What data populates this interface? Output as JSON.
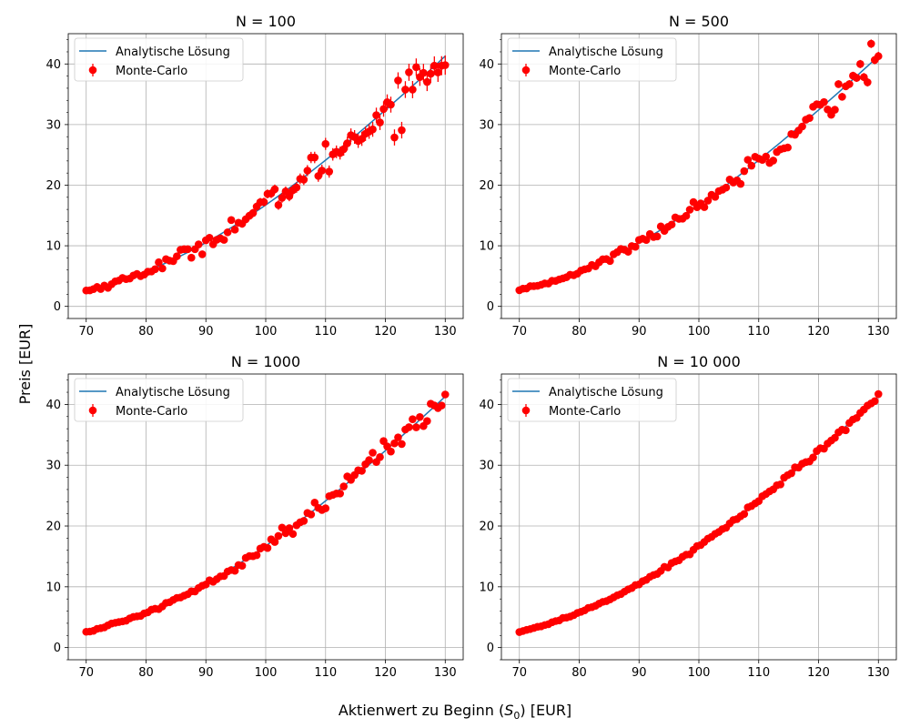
{
  "figure": {
    "xlabel_text": "Aktienwert zu Beginn (",
    "xlabel_sym": "S",
    "xlabel_sub": "0",
    "xlabel_end": ") [EUR]",
    "ylabel": "Preis [EUR]"
  },
  "colors": {
    "analytic_line": "#1f77b4",
    "monte_carlo": "#ff0000",
    "grid": "#b0b0b0"
  },
  "legend": {
    "analytic": "Analytische Lösung",
    "monte_carlo": "Monte-Carlo",
    "position": "top-left"
  },
  "chart_data": [
    {
      "type": "scatter",
      "title": "N = 100",
      "xlim": [
        67,
        133
      ],
      "ylim": [
        -2,
        45
      ],
      "xticks": [
        70,
        80,
        90,
        100,
        110,
        120,
        130
      ],
      "yticks": [
        0,
        10,
        20,
        30,
        40
      ],
      "x_range": [
        70,
        130
      ],
      "n_points": 100,
      "strike": 100,
      "t_rate": 0.1,
      "sigma_t": 0.3,
      "noise_amp": 0.06,
      "err_scale": 1.0,
      "grid": true,
      "series": [
        {
          "name": "Analytische Lösung",
          "kind": "line"
        },
        {
          "name": "Monte-Carlo",
          "kind": "errorbar"
        }
      ]
    },
    {
      "type": "scatter",
      "title": "N = 500",
      "xlim": [
        67,
        133
      ],
      "ylim": [
        -2,
        45
      ],
      "xticks": [
        70,
        80,
        90,
        100,
        110,
        120,
        130
      ],
      "yticks": [
        0,
        10,
        20,
        30,
        40
      ],
      "x_range": [
        70,
        130
      ],
      "n_points": 100,
      "strike": 100,
      "t_rate": 0.1,
      "sigma_t": 0.3,
      "noise_amp": 0.035,
      "err_scale": 0.45,
      "grid": true,
      "series": [
        {
          "name": "Analytische Lösung",
          "kind": "line"
        },
        {
          "name": "Monte-Carlo",
          "kind": "errorbar"
        }
      ]
    },
    {
      "type": "scatter",
      "title": "N = 1000",
      "xlim": [
        67,
        133
      ],
      "ylim": [
        -2,
        45
      ],
      "xticks": [
        70,
        80,
        90,
        100,
        110,
        120,
        130
      ],
      "yticks": [
        0,
        10,
        20,
        30,
        40
      ],
      "x_range": [
        70,
        130
      ],
      "n_points": 100,
      "strike": 100,
      "t_rate": 0.1,
      "sigma_t": 0.3,
      "noise_amp": 0.025,
      "err_scale": 0.32,
      "grid": true,
      "series": [
        {
          "name": "Analytische Lösung",
          "kind": "line"
        },
        {
          "name": "Monte-Carlo",
          "kind": "errorbar"
        }
      ]
    },
    {
      "type": "scatter",
      "title": "N = 10 000",
      "xlim": [
        67,
        133
      ],
      "ylim": [
        -2,
        45
      ],
      "xticks": [
        70,
        80,
        90,
        100,
        110,
        120,
        130
      ],
      "yticks": [
        0,
        10,
        20,
        30,
        40
      ],
      "x_range": [
        70,
        130
      ],
      "n_points": 100,
      "strike": 100,
      "t_rate": 0.1,
      "sigma_t": 0.3,
      "noise_amp": 0.008,
      "err_scale": 0.1,
      "grid": true,
      "series": [
        {
          "name": "Analytische Lösung",
          "kind": "line"
        },
        {
          "name": "Monte-Carlo",
          "kind": "errorbar"
        }
      ]
    }
  ]
}
